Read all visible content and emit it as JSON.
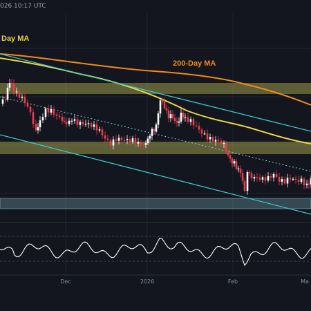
{
  "header": {
    "timestamp": "026 10:17 UTC"
  },
  "colors": {
    "background": "#13161e",
    "grid": "#1f2430",
    "candle_up": "#ffffff",
    "candle_down": "#ef3b4d",
    "ma_200": "#f28c18",
    "ma_100": "#e9d54a",
    "channel": "#3fc6c6",
    "zone_yellow": "#c8c65a",
    "zone_cyan": "#8fd0dc",
    "rsi_line": "#ffffff"
  },
  "chart_data": [
    {
      "type": "candlestick",
      "title": "",
      "series": [
        {
          "name": "200-Day MA",
          "color": "#f28c18"
        },
        {
          "name": "Day MA",
          "color": "#e9d54a"
        }
      ],
      "x_ticks": [
        "Dec",
        "2026",
        "Feb",
        "Ma"
      ],
      "annotations": [
        {
          "label": "Day MA"
        },
        {
          "label": "200-Day MA"
        }
      ],
      "features": {
        "descending_channel": true,
        "dotted_trendline": true,
        "supply_zones": 2,
        "support_zone": 1
      },
      "grid": true
    },
    {
      "type": "line",
      "title": "",
      "indicator": "RSI",
      "grid": true
    }
  ]
}
